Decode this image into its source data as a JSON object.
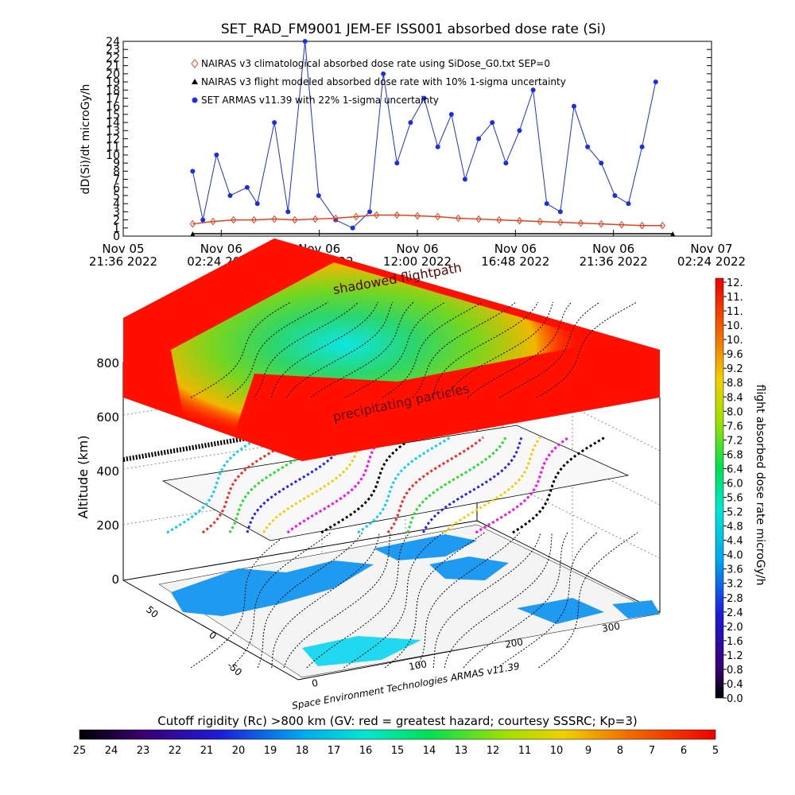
{
  "title": "SET_RAD_FM9001  JEM-EF ISS001 absorbed dose rate (Si)",
  "chart_data": [
    {
      "type": "line",
      "title": "SET_RAD_FM9001  JEM-EF ISS001 absorbed dose rate (Si)",
      "ylabel": "dD(Si)/dt microGy/h",
      "ylim": [
        0,
        24
      ],
      "yticks": [
        "0",
        "1",
        "2",
        "3",
        "4",
        "5",
        "6",
        "7",
        "8",
        "9",
        "10",
        "11",
        "12",
        "13",
        "14",
        "15",
        "16",
        "17",
        "18",
        "19",
        "20",
        "21",
        "22",
        "23",
        "24"
      ],
      "xlim": [
        "2022-11-05 21:36",
        "2022-11-07 02:24"
      ],
      "xticks": [
        {
          "date": "Nov 05",
          "time": "21:36 2022"
        },
        {
          "date": "Nov 06",
          "time": "02:24 2022"
        },
        {
          "date": "Nov 06",
          "time": "07:12 2022"
        },
        {
          "date": "Nov 06",
          "time": "12:00 2022"
        },
        {
          "date": "Nov 06",
          "time": "16:48 2022"
        },
        {
          "date": "Nov 06",
          "time": "21:36 2022"
        },
        {
          "date": "Nov 07",
          "time": "02:24 2022"
        }
      ],
      "legend": [
        {
          "label": "NAIRAS v3 climatological absorbed dose rate using SiDose_G0.txt SEP=0",
          "marker": "diamond",
          "color": "#e8401c"
        },
        {
          "label": "NAIRAS v3 flight modeled absorbed dose rate with 10% 1-sigma uncertainty",
          "marker": "triangle",
          "color": "#000000"
        },
        {
          "label": "SET ARMAS v11.39 with 22% 1-sigma uncertainty",
          "marker": "circle",
          "color": "#1a2ee8"
        }
      ],
      "series": [
        {
          "name": "SET ARMAS v11.39 with 22% 1-sigma uncertainty",
          "color": "#1a2ee8",
          "x": [
            "2022-11-06 01:00",
            "2022-11-06 01:30",
            "2022-11-06 02:10",
            "2022-11-06 02:50",
            "2022-11-06 03:40",
            "2022-11-06 04:10",
            "2022-11-06 05:00",
            "2022-11-06 05:40",
            "2022-11-06 06:30",
            "2022-11-06 07:10",
            "2022-11-06 08:00",
            "2022-11-06 08:50",
            "2022-11-06 09:40",
            "2022-11-06 10:20",
            "2022-11-06 11:00",
            "2022-11-06 11:40",
            "2022-11-06 12:20",
            "2022-11-06 13:00",
            "2022-11-06 13:40",
            "2022-11-06 14:20",
            "2022-11-06 15:00",
            "2022-11-06 15:40",
            "2022-11-06 16:20",
            "2022-11-06 17:00",
            "2022-11-06 17:40",
            "2022-11-06 18:20",
            "2022-11-06 19:00",
            "2022-11-06 19:40",
            "2022-11-06 20:20",
            "2022-11-06 21:00",
            "2022-11-06 21:40",
            "2022-11-06 22:20",
            "2022-11-06 23:00",
            "2022-11-06 23:40"
          ],
          "y": [
            8,
            2,
            10,
            5,
            6,
            4,
            14,
            3,
            24,
            5,
            2,
            1,
            3,
            20,
            9,
            14,
            17,
            11,
            15,
            7,
            12,
            14,
            9,
            13,
            18,
            4,
            3,
            16,
            11,
            9,
            5,
            4,
            11,
            19
          ]
        },
        {
          "name": "NAIRAS v3 climatological absorbed dose rate using SiDose_G0.txt SEP=0",
          "color": "#e8401c",
          "x": [
            "2022-11-06 01:00",
            "2022-11-06 02:00",
            "2022-11-06 03:00",
            "2022-11-06 04:00",
            "2022-11-06 05:00",
            "2022-11-06 06:00",
            "2022-11-06 07:00",
            "2022-11-06 08:00",
            "2022-11-06 09:00",
            "2022-11-06 10:00",
            "2022-11-06 11:00",
            "2022-11-06 12:00",
            "2022-11-06 13:00",
            "2022-11-06 14:00",
            "2022-11-06 15:00",
            "2022-11-06 16:00",
            "2022-11-06 17:00",
            "2022-11-06 18:00",
            "2022-11-06 19:00",
            "2022-11-06 20:00",
            "2022-11-06 21:00",
            "2022-11-06 22:00",
            "2022-11-06 23:00",
            "2022-11-07 00:00"
          ],
          "y": [
            1.5,
            1.8,
            2.0,
            2.0,
            2.1,
            2.0,
            2.1,
            2.2,
            2.4,
            2.6,
            2.6,
            2.5,
            2.4,
            2.2,
            2.1,
            2.0,
            1.9,
            1.8,
            1.7,
            1.6,
            1.5,
            1.4,
            1.3,
            1.3
          ]
        },
        {
          "name": "NAIRAS v3 flight modeled absorbed dose rate with 10% 1-sigma uncertainty",
          "color": "#000000",
          "x": [
            "2022-11-06 01:00",
            "2022-11-07 00:30"
          ],
          "y": [
            0.3,
            0.3
          ]
        }
      ]
    },
    {
      "type": "surface",
      "ylabel": "Altitude (km)",
      "zticks": [
        "0",
        "200",
        "400",
        "600",
        "800"
      ],
      "latitude_ticks": [
        "-50",
        "0",
        "50"
      ],
      "longitude_ticks": [
        "0",
        "100",
        "200",
        "300"
      ],
      "annotations": [
        "shadowed flightpath",
        "precipitating particles"
      ],
      "colorbar": {
        "label": "flight absorbed dose rate microGy/h",
        "ticks": [
          "12.",
          "11.",
          "11.",
          "10.",
          "10.",
          "9.6",
          "9.2",
          "8.8",
          "8.4",
          "8.0",
          "7.6",
          "7.2",
          "6.8",
          "6.4",
          "6.0",
          "5.6",
          "5.2",
          "4.8",
          "4.4",
          "4.0",
          "3.6",
          "3.2",
          "2.8",
          "2.4",
          "2.0",
          "1.6",
          "1.2",
          "0.8",
          "0.4",
          "0.0"
        ]
      },
      "credit": "Space Environment Technologies ARMAS v11.39"
    },
    {
      "type": "colorbar",
      "label": "Cutoff rigidity (Rc) >800 km (GV: red = greatest hazard; courtesy SSSRC; Kp=3)",
      "ticks": [
        "25",
        "24",
        "23",
        "22",
        "21",
        "20",
        "19",
        "18",
        "17",
        "16",
        "15",
        "14",
        "13",
        "12",
        "11",
        "10",
        "9",
        "8",
        "7",
        "6",
        "5"
      ]
    }
  ]
}
